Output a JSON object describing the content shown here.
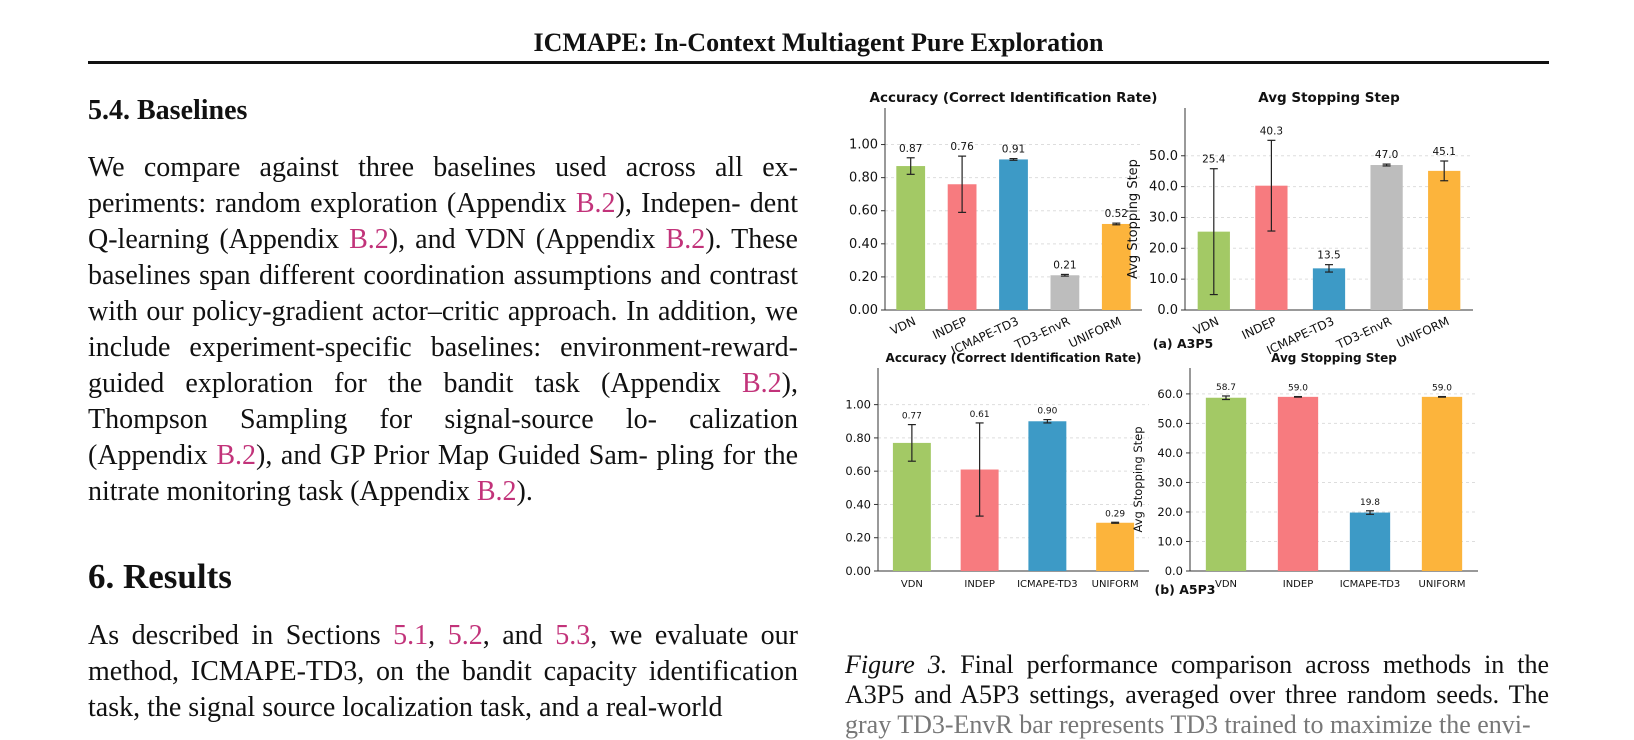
{
  "running_head": "ICMAPE: In-Context Multiagent Pure Exploration",
  "section_54": {
    "heading": "5.4. Baselines",
    "parts": [
      "We compare against three baselines used across all ex- periments: random exploration (Appendix ",
      "B.2",
      "), Indepen- dent Q-learning (Appendix ",
      "B.2",
      "), and VDN (Appendix ",
      "B.2",
      "). These baselines span different coordination assumptions and contrast with our policy-gradient actor–critic approach. In addition, we include experiment-specific baselines: environment-reward-guided exploration for the bandit task (Appendix ",
      "B.2",
      "), Thompson Sampling for signal-source lo- calization (Appendix ",
      "B.2",
      "), and GP Prior Map Guided Sam- pling for the nitrate monitoring task (Appendix ",
      "B.2",
      ")."
    ]
  },
  "section_6": {
    "heading": "6. Results",
    "parts": [
      "As described in Sections ",
      "5.1",
      ", ",
      "5.2",
      ", and ",
      "5.3",
      ", we evaluate our method, ICMAPE-TD3, on the bandit capacity identification task, the signal source localization task, and a real-world"
    ]
  },
  "colors": {
    "VDN": "#a3c965",
    "INDEP": "#f77b7f",
    "ICMAPE-TD3": "#3d9ac6",
    "TD3-EnvR": "#bdbdbd",
    "UNIFORM": "#fcb43c",
    "link": "#c2337a"
  },
  "chart_data": [
    {
      "panel": "(a) A3P5",
      "type": "bar",
      "title": "Accuracy (Correct Identification Rate)",
      "xlabel": "",
      "ylabel": "Accuracy",
      "categories": [
        "VDN",
        "INDEP",
        "ICMAPE-TD3",
        "TD3-EnvR",
        "UNIFORM"
      ],
      "values": [
        0.87,
        0.76,
        0.91,
        0.21,
        0.52
      ],
      "value_labels": [
        "0.87",
        "0.76",
        "0.91",
        "0.21",
        "0.52"
      ],
      "error": [
        0.05,
        0.17,
        0.005,
        0.005,
        0.005
      ],
      "ylim": [
        0,
        1.1
      ],
      "yticks": [
        "0.00",
        "0.20",
        "0.40",
        "0.60",
        "0.80",
        "1.00"
      ],
      "rotate_ticks": true,
      "grid": true
    },
    {
      "panel": "(a) A3P5",
      "type": "bar",
      "title": "Avg Stopping Step",
      "xlabel": "",
      "ylabel": "Avg Stopping Step",
      "categories": [
        "VDN",
        "INDEP",
        "ICMAPE-TD3",
        "TD3-EnvR",
        "UNIFORM"
      ],
      "values": [
        25.4,
        40.3,
        13.5,
        47.0,
        45.1
      ],
      "value_labels": [
        "25.4",
        "40.3",
        "13.5",
        "47.0",
        "45.1"
      ],
      "error": [
        20.4,
        14.7,
        1.2,
        0.3,
        3.2
      ],
      "ylim": [
        0,
        59
      ],
      "yticks": [
        "0.0",
        "10.0",
        "20.0",
        "30.0",
        "40.0",
        "50.0"
      ],
      "rotate_ticks": true,
      "grid": true
    },
    {
      "panel": "(b) A5P3",
      "type": "bar",
      "title": "Accuracy (Correct Identification Rate)",
      "xlabel": "",
      "ylabel": "Accuracy",
      "categories": [
        "VDN",
        "INDEP",
        "ICMAPE-TD3",
        "UNIFORM"
      ],
      "values": [
        0.77,
        0.61,
        0.9,
        0.29
      ],
      "value_labels": [
        "0.77",
        "0.61",
        "0.90",
        "0.29"
      ],
      "error": [
        0.11,
        0.28,
        0.01,
        0.003
      ],
      "ylim": [
        0,
        1.1
      ],
      "yticks": [
        "0.00",
        "0.20",
        "0.40",
        "0.60",
        "0.80",
        "1.00"
      ],
      "rotate_ticks": false,
      "grid": true
    },
    {
      "panel": "(b) A5P3",
      "type": "bar",
      "title": "Avg Stopping Step",
      "xlabel": "",
      "ylabel": "Avg Stopping Step",
      "categories": [
        "VDN",
        "INDEP",
        "ICMAPE-TD3",
        "UNIFORM"
      ],
      "values": [
        58.7,
        59.0,
        19.8,
        59.0
      ],
      "value_labels": [
        "58.7",
        "59.0",
        "19.8",
        "59.0"
      ],
      "error": [
        0.6,
        0.1,
        0.6,
        0.1
      ],
      "ylim": [
        0,
        62
      ],
      "yticks": [
        "0.0",
        "10.0",
        "20.0",
        "30.0",
        "40.0",
        "50.0",
        "60.0"
      ],
      "rotate_ticks": false,
      "grid": true
    }
  ],
  "subfigure_labels": [
    "(a) A3P5",
    "(b) A5P3"
  ],
  "caption": {
    "label": "Figure 3.",
    "text": "Final performance comparison across methods in the A3P5 and A5P3 settings, averaged over three random seeds. The",
    "line3": "gray TD3-EnvR bar represents TD3 trained to maximize the envi-"
  }
}
